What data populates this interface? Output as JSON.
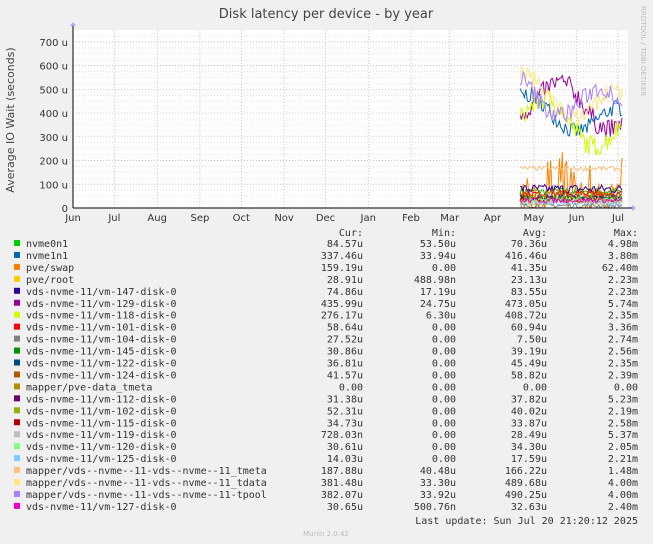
{
  "chart_data": {
    "type": "line",
    "title": "Disk latency per device - by year",
    "ylabel": "Average IO Wait (seconds)",
    "xlabel": "",
    "ylim": [
      0,
      750
    ],
    "yticks": [
      {
        "v": 0,
        "label": "0"
      },
      {
        "v": 100,
        "label": "100 u"
      },
      {
        "v": 200,
        "label": "200 u"
      },
      {
        "v": 300,
        "label": "300 u"
      },
      {
        "v": 400,
        "label": "400 u"
      },
      {
        "v": 500,
        "label": "500 u"
      },
      {
        "v": 600,
        "label": "600 u"
      },
      {
        "v": 700,
        "label": "700 u"
      }
    ],
    "xmonths": [
      "Jun",
      "Jul",
      "Aug",
      "Sep",
      "Oct",
      "Nov",
      "Dec",
      "Jan",
      "Feb",
      "Mar",
      "Apr",
      "May",
      "Jun",
      "Jul"
    ],
    "grid": true,
    "legend_headers": [
      "Cur:",
      "Min:",
      "Avg:",
      "Max:"
    ],
    "series": [
      {
        "name": "nvme0n1",
        "color": "#00cc00",
        "cur": "84.57u",
        "min": "53.50u",
        "avg": "70.36u",
        "max": "4.98m",
        "base": 70,
        "amp": 15
      },
      {
        "name": "nvme1n1",
        "color": "#0066b3",
        "cur": "337.46u",
        "min": "33.94u",
        "avg": "416.46u",
        "max": "3.80m",
        "base": 420,
        "amp": 70
      },
      {
        "name": "pve/swap",
        "color": "#ff8000",
        "cur": "159.19u",
        "min": "0.00",
        "avg": "41.35u",
        "max": "62.40m",
        "base": 40,
        "amp": 70,
        "spiky": true
      },
      {
        "name": "pve/root",
        "color": "#ffcc00",
        "cur": "28.91u",
        "min": "488.98n",
        "avg": "23.13u",
        "max": "2.23m",
        "base": 25,
        "amp": 12
      },
      {
        "name": "vds-nvme-11/vm-147-disk-0",
        "color": "#330099",
        "cur": "74.86u",
        "min": "17.19u",
        "avg": "83.55u",
        "max": "2.23m",
        "base": 80,
        "amp": 20
      },
      {
        "name": "vds-nvme-11/vm-129-disk-0",
        "color": "#990099",
        "cur": "435.99u",
        "min": "24.75u",
        "avg": "473.05u",
        "max": "5.74m",
        "base": 480,
        "amp": 90
      },
      {
        "name": "vds-nvme-11/vm-118-disk-0",
        "color": "#ccff00",
        "cur": "276.17u",
        "min": "6.30u",
        "avg": "408.72u",
        "max": "2.35m",
        "base": 400,
        "amp": 90
      },
      {
        "name": "vds-nvme-11/vm-101-disk-0",
        "color": "#ff0000",
        "cur": "58.64u",
        "min": "0.00",
        "avg": "60.94u",
        "max": "3.36m",
        "base": 60,
        "amp": 15
      },
      {
        "name": "vds-nvme-11/vm-104-disk-0",
        "color": "#808080",
        "cur": "27.52u",
        "min": "0.00",
        "avg": "7.50u",
        "max": "2.74m",
        "base": 10,
        "amp": 10
      },
      {
        "name": "vds-nvme-11/vm-145-disk-0",
        "color": "#008f00",
        "cur": "30.86u",
        "min": "0.00",
        "avg": "39.19u",
        "max": "2.56m",
        "base": 40,
        "amp": 12
      },
      {
        "name": "vds-nvme-11/vm-122-disk-0",
        "color": "#00487d",
        "cur": "36.81u",
        "min": "0.00",
        "avg": "45.49u",
        "max": "2.35m",
        "base": 45,
        "amp": 12
      },
      {
        "name": "vds-nvme-11/vm-124-disk-0",
        "color": "#b35a00",
        "cur": "41.57u",
        "min": "0.00",
        "avg": "58.82u",
        "max": "2.39m",
        "base": 58,
        "amp": 15
      },
      {
        "name": "mapper/pve-data_tmeta",
        "color": "#b38f00",
        "cur": "0.00",
        "min": "0.00",
        "avg": "0.00",
        "max": "0.00",
        "base": 0,
        "amp": 0
      },
      {
        "name": "vds-nvme-11/vm-112-disk-0",
        "color": "#6b006b",
        "cur": "31.38u",
        "min": "0.00",
        "avg": "37.82u",
        "max": "5.23m",
        "base": 38,
        "amp": 12
      },
      {
        "name": "vds-nvme-11/vm-102-disk-0",
        "color": "#8fb300",
        "cur": "52.31u",
        "min": "0.00",
        "avg": "40.02u",
        "max": "2.19m",
        "base": 40,
        "amp": 12
      },
      {
        "name": "vds-nvme-11/vm-115-disk-0",
        "color": "#b30000",
        "cur": "34.73u",
        "min": "0.00",
        "avg": "33.87u",
        "max": "2.58m",
        "base": 34,
        "amp": 10
      },
      {
        "name": "vds-nvme-11/vm-119-disk-0",
        "color": "#bebebe",
        "cur": "728.03n",
        "min": "0.00",
        "avg": "28.49u",
        "max": "5.37m",
        "base": 28,
        "amp": 10
      },
      {
        "name": "vds-nvme-11/vm-120-disk-0",
        "color": "#80ff80",
        "cur": "30.61u",
        "min": "0.00",
        "avg": "34.30u",
        "max": "2.05m",
        "base": 34,
        "amp": 10
      },
      {
        "name": "vds-nvme-11/vm-125-disk-0",
        "color": "#80c9ff",
        "cur": "14.03u",
        "min": "0.00",
        "avg": "17.59u",
        "max": "2.21m",
        "base": 18,
        "amp": 8
      },
      {
        "name": "mapper/vds--nvme--11-vds--nvme--11_tmeta",
        "color": "#ffc080",
        "cur": "187.88u",
        "min": "40.48u",
        "avg": "166.22u",
        "max": "1.48m",
        "base": 166,
        "amp": 10
      },
      {
        "name": "mapper/vds--nvme--11-vds--nvme--11_tdata",
        "color": "#ffe680",
        "cur": "381.48u",
        "min": "33.30u",
        "avg": "489.68u",
        "max": "4.00m",
        "base": 490,
        "amp": 80
      },
      {
        "name": "mapper/vds--nvme--11-vds--nvme--11-tpool",
        "color": "#aa80ff",
        "cur": "382.07u",
        "min": "33.92u",
        "avg": "490.25u",
        "max": "4.00m",
        "base": 490,
        "amp": 80
      },
      {
        "name": "vds-nvme-11/vm-127-disk-0",
        "color": "#ee00cc",
        "cur": "30.65u",
        "min": "500.76n",
        "avg": "32.63u",
        "max": "2.40m",
        "base": 32,
        "amp": 10
      }
    ]
  },
  "last_update": "Last update:  Sun Jul 20 21:20:12 2025",
  "side_label": "RRDTOOL / TOBI OETIKER",
  "footer": "Munin 2.0.42"
}
